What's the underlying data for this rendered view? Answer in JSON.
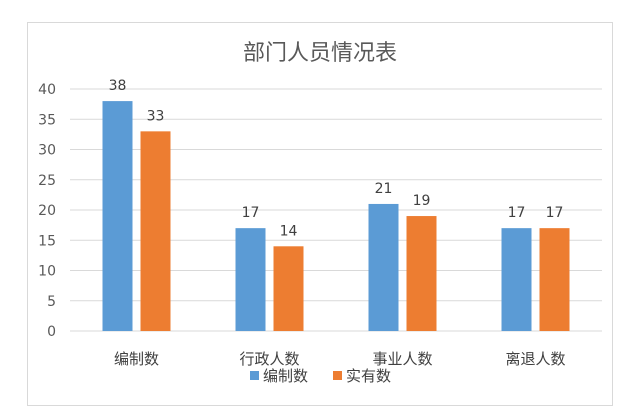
{
  "chart_data": {
    "type": "bar",
    "title": "部门人员情况表",
    "xlabel": "",
    "ylabel": "",
    "categories": [
      "编制数",
      "行政人数",
      "事业人数",
      "离退人数"
    ],
    "series": [
      {
        "name": "编制数",
        "values": [
          38,
          17,
          21,
          17
        ],
        "color": "#5b9bd5"
      },
      {
        "name": "实有数",
        "values": [
          33,
          14,
          19,
          17
        ],
        "color": "#ed7d31"
      }
    ],
    "ylim": [
      0,
      40
    ],
    "yticks": [
      0,
      5,
      10,
      15,
      20,
      25,
      30,
      35,
      40
    ],
    "grid": true,
    "legend_position": "bottom",
    "data_labels": true
  }
}
